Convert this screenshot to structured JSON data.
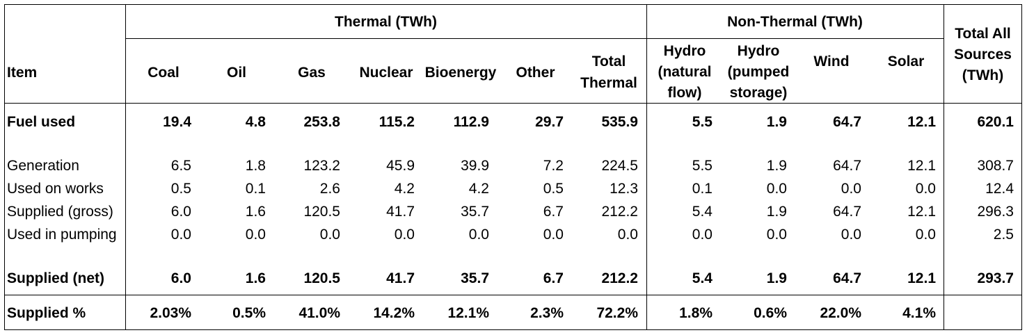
{
  "table": {
    "group_headers": {
      "thermal": "Thermal (TWh)",
      "non_thermal": "Non-Thermal (TWh)"
    },
    "columns": {
      "item": "Item",
      "coal": "Coal",
      "oil": "Oil",
      "gas": "Gas",
      "nuclear": "Nuclear",
      "bioenergy": "Bioenergy",
      "other": "Other",
      "total_thermal": [
        "Total",
        "Thermal"
      ],
      "hydro_natural": [
        "Hydro",
        "(natural",
        "flow)"
      ],
      "hydro_pumped": [
        "Hydro",
        "(pumped",
        "storage)"
      ],
      "wind": "Wind",
      "solar": "Solar",
      "total_all": [
        "Total All",
        "Sources",
        "(TWh)"
      ]
    },
    "rows": [
      {
        "label": "Fuel used",
        "bold": true,
        "values": [
          "19.4",
          "4.8",
          "253.8",
          "115.2",
          "112.9",
          "29.7",
          "535.9",
          "5.5",
          "1.9",
          "64.7",
          "12.1",
          "620.1"
        ]
      },
      {
        "label": "Generation",
        "bold": false,
        "values": [
          "6.5",
          "1.8",
          "123.2",
          "45.9",
          "39.9",
          "7.2",
          "224.5",
          "5.5",
          "1.9",
          "64.7",
          "12.1",
          "308.7"
        ]
      },
      {
        "label": "Used on works",
        "bold": false,
        "values": [
          "0.5",
          "0.1",
          "2.6",
          "4.2",
          "4.2",
          "0.5",
          "12.3",
          "0.1",
          "0.0",
          "0.0",
          "0.0",
          "12.4"
        ]
      },
      {
        "label": "Supplied (gross)",
        "bold": false,
        "values": [
          "6.0",
          "1.6",
          "120.5",
          "41.7",
          "35.7",
          "6.7",
          "212.2",
          "5.4",
          "1.9",
          "64.7",
          "12.1",
          "296.3"
        ]
      },
      {
        "label": "Used in pumping",
        "bold": false,
        "values": [
          "0.0",
          "0.0",
          "0.0",
          "0.0",
          "0.0",
          "0.0",
          "0.0",
          "0.0",
          "0.0",
          "0.0",
          "0.0",
          "2.5"
        ]
      },
      {
        "label": "Supplied (net)",
        "bold": true,
        "values": [
          "6.0",
          "1.6",
          "120.5",
          "41.7",
          "35.7",
          "6.7",
          "212.2",
          "5.4",
          "1.9",
          "64.7",
          "12.1",
          "293.7"
        ]
      },
      {
        "label": "Supplied %",
        "bold": true,
        "values": [
          "2.03%",
          "0.5%",
          "41.0%",
          "14.2%",
          "12.1%",
          "2.3%",
          "72.2%",
          "1.8%",
          "0.6%",
          "22.0%",
          "4.1%",
          ""
        ]
      }
    ]
  }
}
